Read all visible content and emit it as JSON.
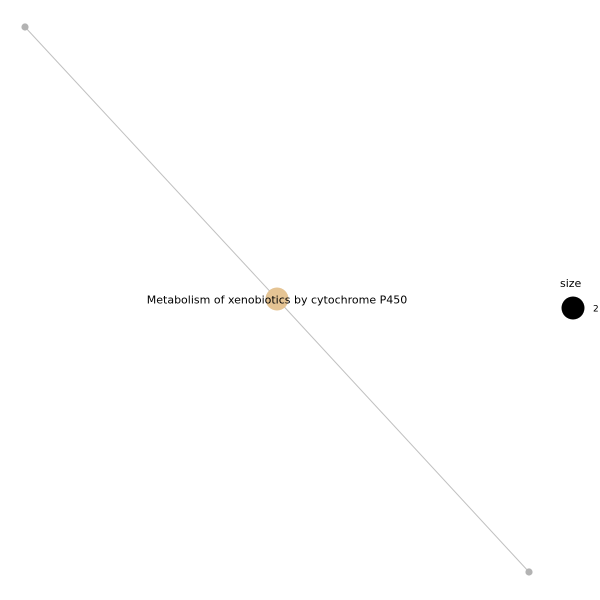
{
  "colors": {
    "background": "#ffffff",
    "edge": "#c0c0c0",
    "gene_node": "#b3b3b3",
    "pathway_node": "#e5c494",
    "legend_marker": "#000000"
  },
  "network": {
    "pathway": {
      "label": "Metabolism of xenobiotics by cytochrome P450",
      "size": 2
    },
    "genes": [
      {
        "id": "gene-1"
      },
      {
        "id": "gene-2"
      }
    ],
    "edges": [
      {
        "from": "gene-1",
        "to": "pathway"
      },
      {
        "from": "pathway",
        "to": "gene-2"
      }
    ]
  },
  "legend": {
    "title": "size",
    "entries": [
      {
        "value": "2"
      }
    ]
  }
}
